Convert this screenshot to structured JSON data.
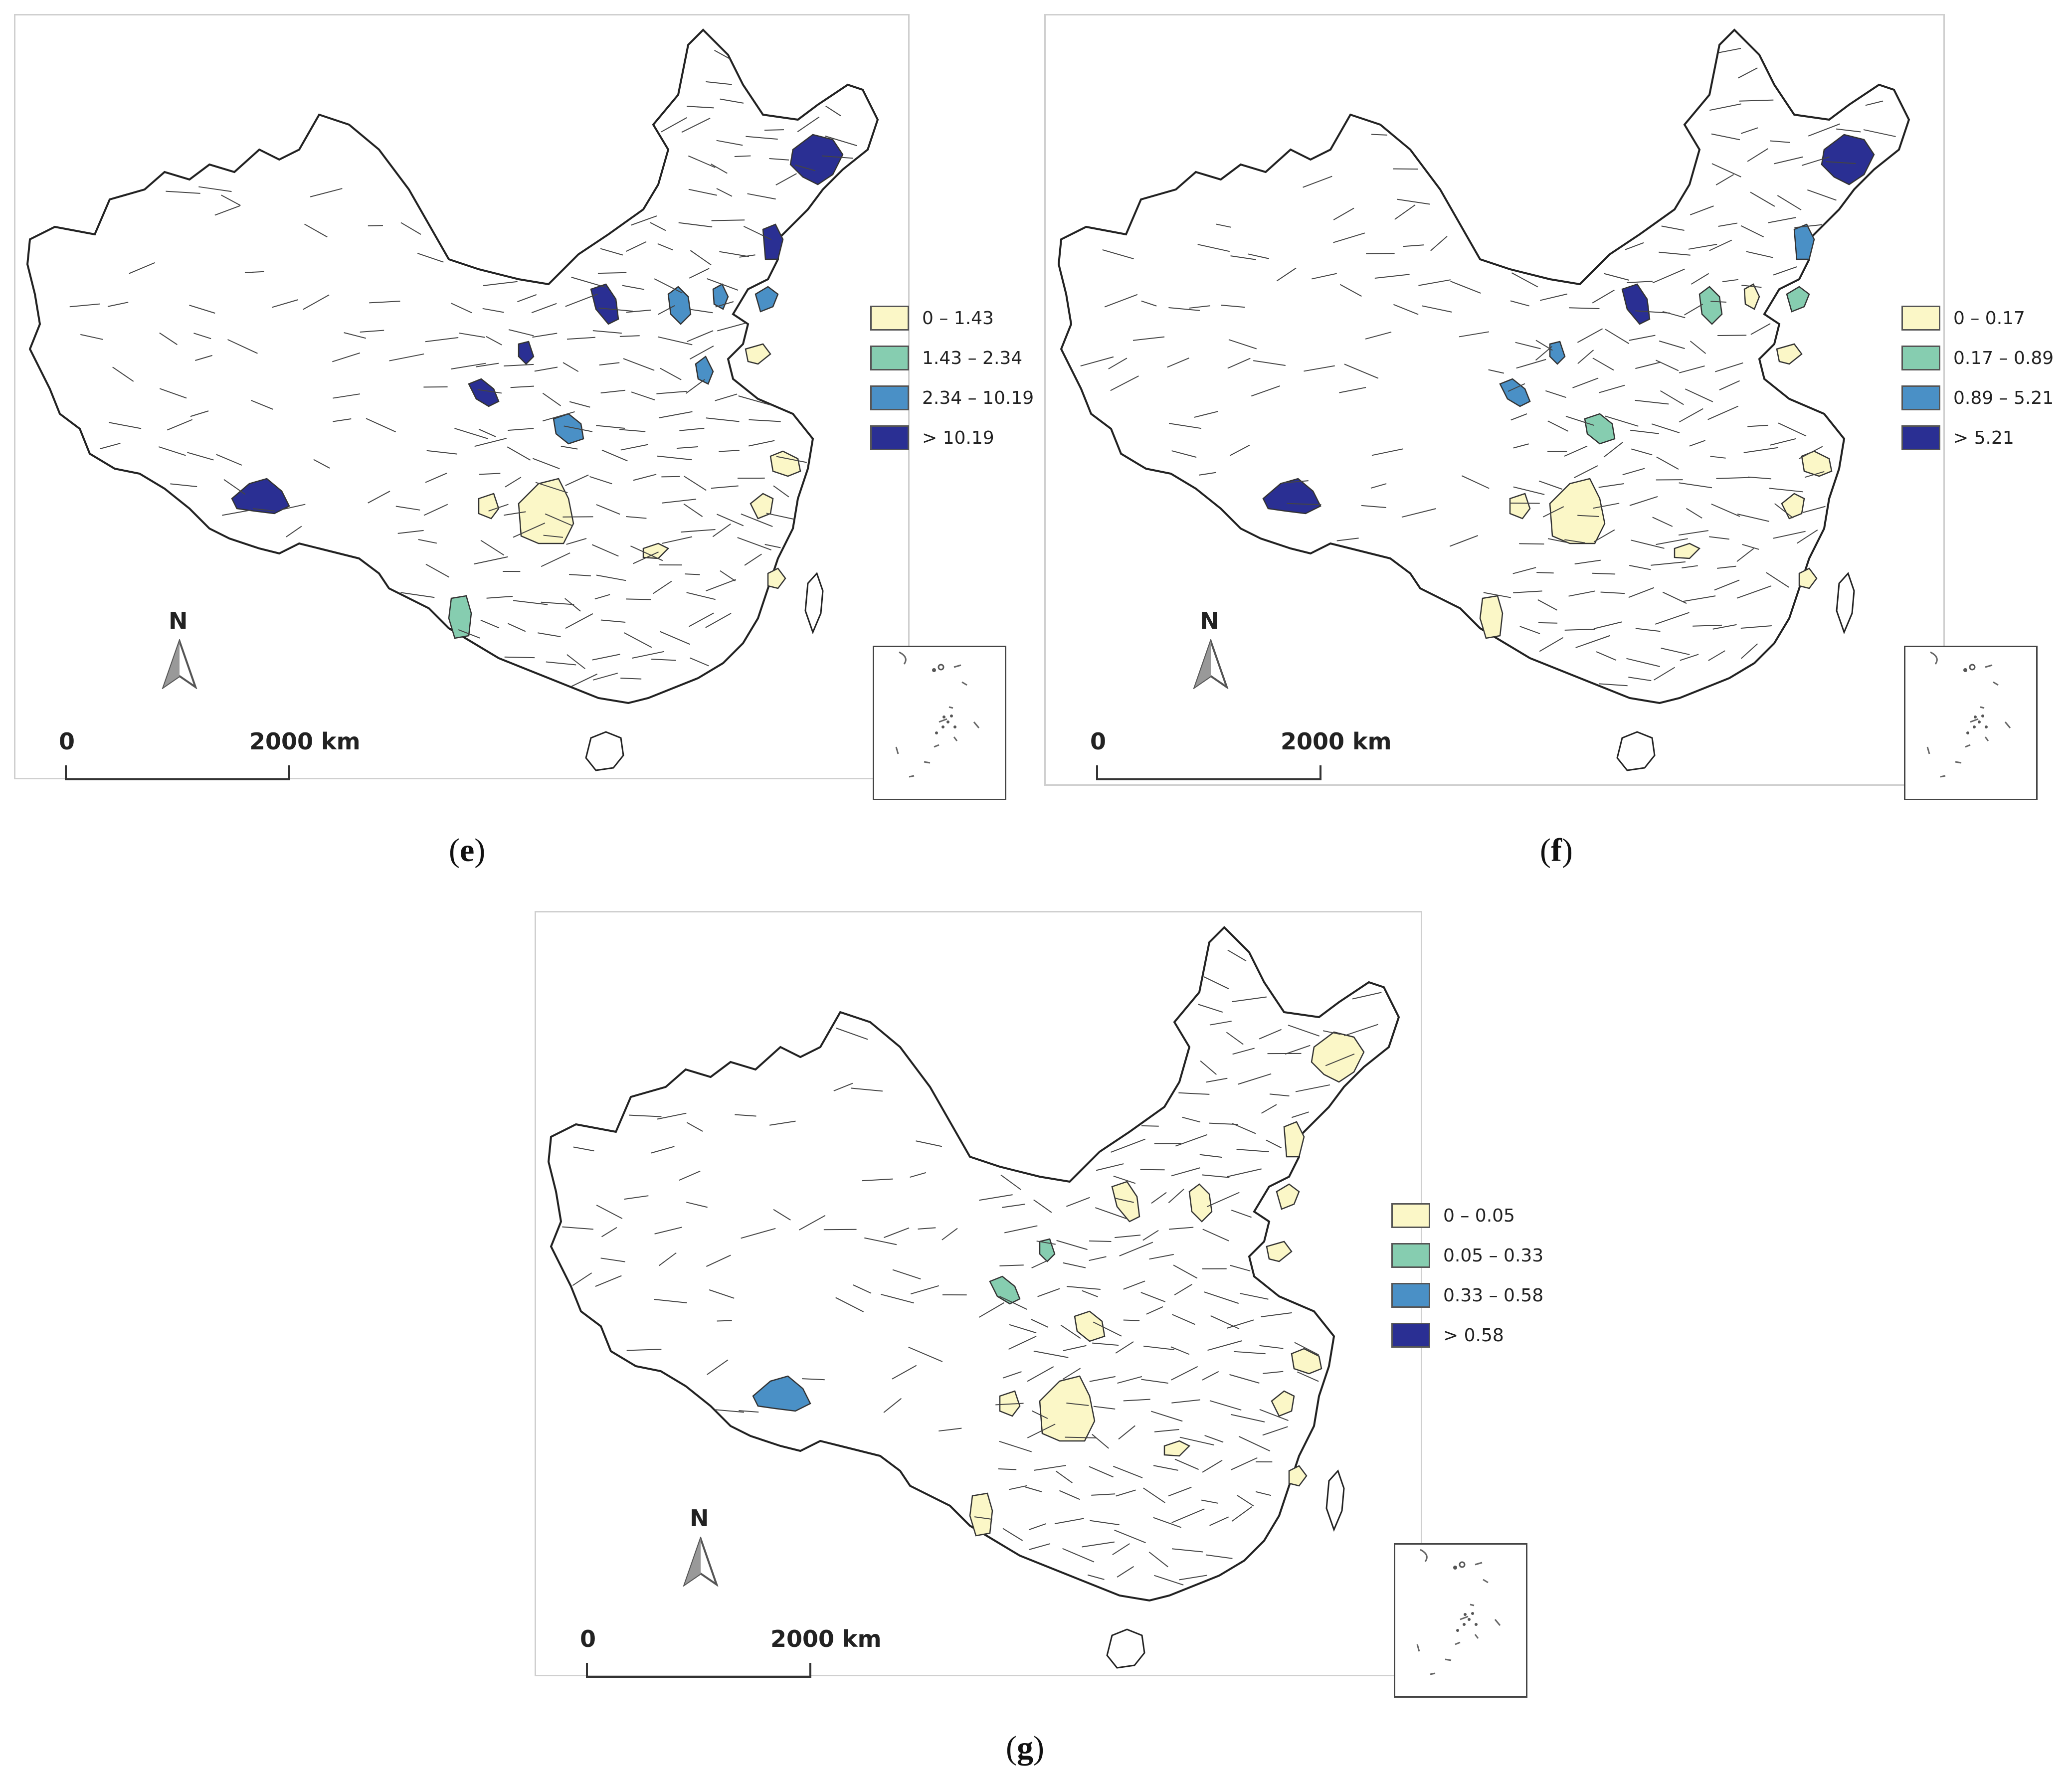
{
  "panels": [
    {
      "id": "e",
      "caption_letter": "e",
      "legend": [
        {
          "label": "0 – 1.43",
          "color": "#fbf7c7"
        },
        {
          "label": "1.43 – 2.34",
          "color": "#86cdb0"
        },
        {
          "label": "2.34 – 10.19",
          "color": "#4a90c6"
        },
        {
          "label": "> 10.19",
          "color": "#2a2f93"
        }
      ],
      "north": "N",
      "scale": {
        "start": "0",
        "end": "2000 km"
      }
    },
    {
      "id": "f",
      "caption_letter": "f",
      "legend": [
        {
          "label": "0 – 0.17",
          "color": "#fbf7c7"
        },
        {
          "label": "0.17 – 0.89",
          "color": "#86cdb0"
        },
        {
          "label": "0.89 – 5.21",
          "color": "#4a90c6"
        },
        {
          "label": "> 5.21",
          "color": "#2a2f93"
        }
      ],
      "north": "N",
      "scale": {
        "start": "0",
        "end": "2000 km"
      }
    },
    {
      "id": "g",
      "caption_letter": "g",
      "legend": [
        {
          "label": "0 – 0.05",
          "color": "#fbf7c7"
        },
        {
          "label": "0.05 – 0.33",
          "color": "#86cdb0"
        },
        {
          "label": "0.33 – 0.58",
          "color": "#4a90c6"
        },
        {
          "label": "> 0.58",
          "color": "#2a2f93"
        }
      ],
      "north": "N",
      "scale": {
        "start": "0",
        "end": "2000 km"
      }
    }
  ],
  "highlighted_regions": {
    "e": [
      {
        "region": "heilongjiang-east",
        "class": 3
      },
      {
        "region": "jilin-north",
        "class": 3
      },
      {
        "region": "inner-mongolia-central",
        "class": 3
      },
      {
        "region": "ningxia-north",
        "class": 3
      },
      {
        "region": "gansu-east",
        "class": 3
      },
      {
        "region": "tibet-south",
        "class": 3
      },
      {
        "region": "beijing-area",
        "class": 2
      },
      {
        "region": "hebei-north",
        "class": 2
      },
      {
        "region": "liaoning-coast",
        "class": 2
      },
      {
        "region": "shandong-west",
        "class": 2
      },
      {
        "region": "shaanxi-central",
        "class": 2
      },
      {
        "region": "yunnan-central",
        "class": 1
      },
      {
        "region": "chongqing-area",
        "class": 0
      },
      {
        "region": "sichuan-central",
        "class": 0
      },
      {
        "region": "hubei-central",
        "class": 0
      },
      {
        "region": "jiangsu-east",
        "class": 0
      },
      {
        "region": "zhejiang-north",
        "class": 0
      },
      {
        "region": "fujian-coast",
        "class": 0
      },
      {
        "region": "shandong-east",
        "class": 0
      }
    ],
    "f": [
      {
        "region": "heilongjiang-east",
        "class": 3
      },
      {
        "region": "inner-mongolia-central",
        "class": 3
      },
      {
        "region": "tibet-south",
        "class": 3
      },
      {
        "region": "jilin-north",
        "class": 2
      },
      {
        "region": "ningxia-north",
        "class": 2
      },
      {
        "region": "gansu-east",
        "class": 2
      },
      {
        "region": "liaoning-coast",
        "class": 1
      },
      {
        "region": "beijing-area",
        "class": 1
      },
      {
        "region": "shaanxi-central",
        "class": 1
      },
      {
        "region": "yunnan-central",
        "class": 0
      },
      {
        "region": "chongqing-area",
        "class": 0
      },
      {
        "region": "sichuan-central",
        "class": 0
      },
      {
        "region": "hubei-central",
        "class": 0
      },
      {
        "region": "jiangsu-east",
        "class": 0
      },
      {
        "region": "zhejiang-north",
        "class": 0
      },
      {
        "region": "fujian-coast",
        "class": 0
      },
      {
        "region": "shandong-east",
        "class": 0
      },
      {
        "region": "hebei-north",
        "class": 0
      }
    ],
    "g": [
      {
        "region": "tibet-south",
        "class": 2
      },
      {
        "region": "ningxia-north",
        "class": 1
      },
      {
        "region": "gansu-east",
        "class": 1
      },
      {
        "region": "heilongjiang-east",
        "class": 0
      },
      {
        "region": "jilin-north",
        "class": 0
      },
      {
        "region": "inner-mongolia-central",
        "class": 0
      },
      {
        "region": "beijing-area",
        "class": 0
      },
      {
        "region": "liaoning-coast",
        "class": 0
      },
      {
        "region": "shandong-east",
        "class": 0
      },
      {
        "region": "yunnan-central",
        "class": 0
      },
      {
        "region": "chongqing-area",
        "class": 0
      },
      {
        "region": "sichuan-central",
        "class": 0
      },
      {
        "region": "hubei-central",
        "class": 0
      },
      {
        "region": "jiangsu-east",
        "class": 0
      },
      {
        "region": "zhejiang-north",
        "class": 0
      },
      {
        "region": "fujian-coast",
        "class": 0
      },
      {
        "region": "shaanxi-central",
        "class": 0
      }
    ]
  }
}
